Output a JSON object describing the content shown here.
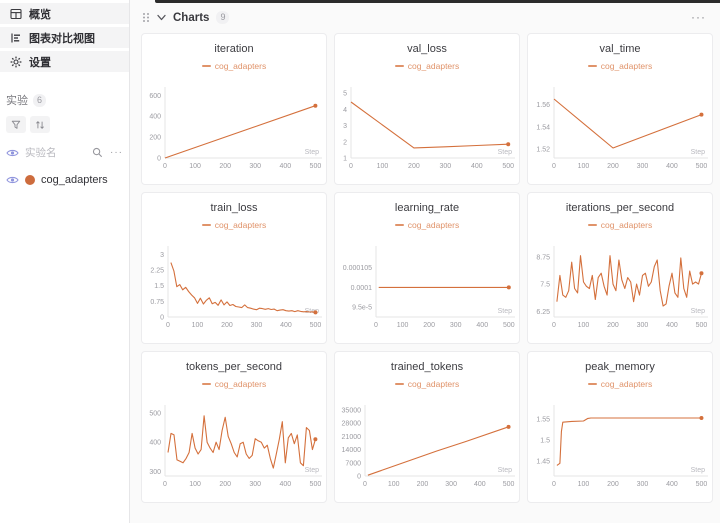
{
  "sidebar": {
    "nav": [
      {
        "label": "概览"
      },
      {
        "label": "图表对比视图"
      },
      {
        "label": "设置"
      }
    ],
    "experiments_section": {
      "label": "实验",
      "count": "6"
    },
    "columns_row": {
      "label": "实验名",
      "more": "···"
    },
    "experiments": [
      {
        "name": "cog_adapters",
        "color": "#cd6c3d"
      }
    ]
  },
  "header": {
    "title": "Charts",
    "count": "9",
    "more": "···"
  },
  "colors": {
    "line": "#d4703c",
    "legend_text": "#e0936a",
    "axis": "#e4e4e6",
    "tick_text": "#9b9ba1",
    "step_text": "#b9b9bf"
  },
  "chart_data": [
    {
      "type": "line",
      "title": "iteration",
      "legend": "cog_adapters",
      "x": [
        0,
        500
      ],
      "y": [
        0,
        500
      ],
      "xlim": [
        0,
        512
      ],
      "ylim": [
        0,
        660
      ],
      "xticks": [
        0,
        100,
        200,
        300,
        400,
        500
      ],
      "yticks": {
        "values": [
          0,
          200,
          400,
          600
        ],
        "labels": [
          "0",
          "200",
          "400",
          "600"
        ]
      },
      "xlabel": "Step"
    },
    {
      "type": "line",
      "title": "val_loss",
      "legend": "cog_adapters",
      "x": [
        0,
        200,
        300,
        400,
        500
      ],
      "y": [
        4.45,
        1.62,
        1.69,
        1.77,
        1.85
      ],
      "xlim": [
        0,
        512
      ],
      "ylim": [
        1,
        5.25
      ],
      "xticks": [
        0,
        100,
        200,
        300,
        400,
        500
      ],
      "yticks": {
        "values": [
          1,
          2,
          3,
          4,
          5
        ],
        "labels": [
          "1",
          "2",
          "3",
          "4",
          "5"
        ]
      },
      "xlabel": "Step"
    },
    {
      "type": "line",
      "title": "val_time",
      "legend": "cog_adapters",
      "x": [
        0,
        200,
        500
      ],
      "y": [
        1.565,
        1.521,
        1.551
      ],
      "xlim": [
        0,
        512
      ],
      "ylim": [
        1.512,
        1.574
      ],
      "xticks": [
        0,
        100,
        200,
        300,
        400,
        500
      ],
      "yticks": {
        "values": [
          1.52,
          1.54,
          1.56
        ],
        "labels": [
          "1.52",
          "1.54",
          "1.56"
        ]
      },
      "xlabel": "Step"
    },
    {
      "type": "line",
      "title": "train_loss",
      "legend": "cog_adapters",
      "x_start": 10,
      "x_step": 10,
      "y": [
        2.6,
        2.2,
        1.45,
        1.55,
        1.3,
        1.42,
        1.22,
        1.05,
        0.92,
        0.65,
        0.9,
        0.62,
        0.8,
        0.92,
        0.63,
        0.7,
        0.56,
        0.82,
        0.58,
        0.72,
        0.55,
        0.6,
        0.5,
        0.48,
        0.45,
        0.58,
        0.45,
        0.42,
        0.38,
        0.35,
        0.42,
        0.4,
        0.37,
        0.4,
        0.36,
        0.38,
        0.3,
        0.33,
        0.35,
        0.3,
        0.28,
        0.3,
        0.26,
        0.3,
        0.27,
        0.25,
        0.26,
        0.24,
        0.25,
        0.22
      ],
      "xlim": [
        0,
        512
      ],
      "ylim": [
        0,
        3.3
      ],
      "xticks": [
        0,
        100,
        200,
        300,
        400,
        500
      ],
      "yticks": {
        "values": [
          0,
          0.75,
          1.5,
          2.25,
          3
        ],
        "labels": [
          "0",
          "0.75",
          "1.5",
          "2.25",
          "3"
        ]
      },
      "xlabel": "Step"
    },
    {
      "type": "line",
      "title": "learning_rate",
      "legend": "cog_adapters",
      "x": [
        10,
        500
      ],
      "y": [
        0.0001,
        0.0001
      ],
      "xlim": [
        0,
        512
      ],
      "ylim": [
        9.25e-05,
        0.00011
      ],
      "xticks": [
        0,
        100,
        200,
        300,
        400,
        500
      ],
      "yticks": {
        "values": [
          9.5e-05,
          0.0001,
          0.000105
        ],
        "labels": [
          "9.5e-5",
          "0.0001",
          "0.000105"
        ]
      },
      "xlabel": "Step"
    },
    {
      "type": "line",
      "title": "iterations_per_second",
      "legend": "cog_adapters",
      "x_start": 10,
      "x_step": 10,
      "y": [
        6.7,
        7.9,
        7.0,
        6.9,
        7.2,
        8.5,
        7.3,
        7.1,
        8.8,
        7.6,
        7.4,
        7.3,
        7.9,
        6.8,
        7.8,
        8.0,
        7.4,
        7.0,
        8.8,
        7.5,
        7.2,
        8.6,
        7.7,
        7.3,
        7.8,
        7.6,
        6.7,
        7.5,
        7.0,
        7.9,
        8.0,
        7.4,
        7.6,
        8.3,
        8.6,
        7.2,
        6.5,
        6.6,
        7.4,
        8.0,
        7.1,
        6.9,
        8.7,
        7.3,
        6.9,
        8.1,
        7.5,
        7.6,
        7.5,
        8.0
      ],
      "xlim": [
        0,
        512
      ],
      "ylim": [
        6.0,
        9.15
      ],
      "xticks": [
        0,
        100,
        200,
        300,
        400,
        500
      ],
      "yticks": {
        "values": [
          6.25,
          7.5,
          8.75
        ],
        "labels": [
          "6.25",
          "7.5",
          "8.75"
        ]
      },
      "xlabel": "Step"
    },
    {
      "type": "line",
      "title": "tokens_per_second",
      "legend": "cog_adapters",
      "x_start": 10,
      "x_step": 10,
      "y": [
        365,
        430,
        425,
        340,
        335,
        330,
        345,
        365,
        430,
        380,
        360,
        375,
        490,
        400,
        380,
        365,
        400,
        375,
        440,
        485,
        420,
        395,
        365,
        350,
        395,
        400,
        360,
        345,
        355,
        412,
        405,
        400,
        380,
        390,
        345,
        312,
        360,
        410,
        470,
        330,
        415,
        430,
        395,
        425,
        330,
        320,
        450,
        440,
        375,
        410
      ],
      "xlim": [
        0,
        512
      ],
      "ylim": [
        285,
        520
      ],
      "xticks": [
        0,
        100,
        200,
        300,
        400,
        500
      ],
      "yticks": {
        "values": [
          300,
          400,
          500
        ],
        "labels": [
          "300",
          "400",
          "500"
        ]
      },
      "xlabel": "Step"
    },
    {
      "type": "line",
      "title": "trained_tokens",
      "legend": "cog_adapters",
      "x": [
        10,
        250,
        350,
        500
      ],
      "y": [
        400,
        13200,
        18200,
        26000
      ],
      "xlim": [
        0,
        512
      ],
      "ylim": [
        0,
        36500
      ],
      "xticks": [
        0,
        100,
        200,
        300,
        400,
        500
      ],
      "yticks": {
        "values": [
          0,
          7000,
          14000,
          21000,
          28000,
          35000
        ],
        "labels": [
          "0",
          "7000",
          "14000",
          "21000",
          "28000",
          "35000"
        ]
      },
      "xlabel": "Step"
    },
    {
      "type": "line",
      "title": "peak_memory",
      "legend": "cog_adapters",
      "x": [
        10,
        20,
        25,
        30,
        60,
        100,
        115,
        125,
        200,
        300,
        400,
        500
      ],
      "y": [
        1.44,
        1.445,
        1.52,
        1.542,
        1.544,
        1.545,
        1.551,
        1.552,
        1.552,
        1.552,
        1.552,
        1.552
      ],
      "xlim": [
        0,
        512
      ],
      "ylim": [
        1.415,
        1.578
      ],
      "xticks": [
        0,
        100,
        200,
        300,
        400,
        500
      ],
      "yticks": {
        "values": [
          1.45,
          1.5,
          1.55
        ],
        "labels": [
          "1.45",
          "1.5",
          "1.55"
        ]
      },
      "xlabel": "Step"
    }
  ]
}
